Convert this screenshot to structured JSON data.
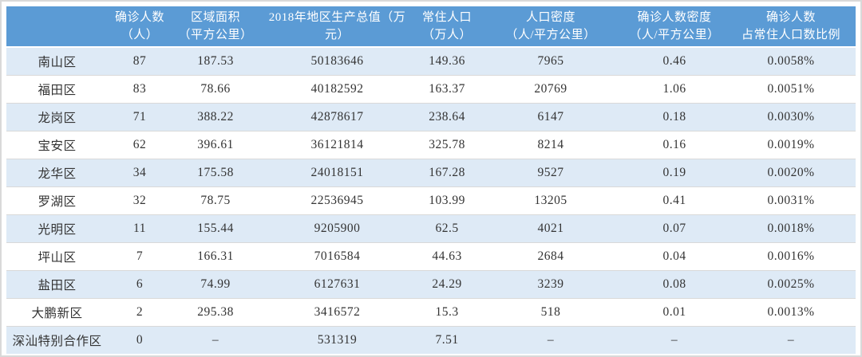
{
  "colors": {
    "header_bg": "#5B9BD5",
    "header_text": "#FFFFFF",
    "row_alt_bg": "#DEEAF6",
    "row_bg": "#FFFFFF",
    "body_text": "#333333",
    "row_border": "#D9D9D9",
    "outer_border": "#D9D9D9"
  },
  "table": {
    "columns": [
      {
        "id": "district",
        "line1": "",
        "line2": ""
      },
      {
        "id": "confirmed",
        "line1": "确诊人数",
        "line2": "（人）"
      },
      {
        "id": "area",
        "line1": "区域面积",
        "line2": "（平方公里）"
      },
      {
        "id": "gdp",
        "line1": "2018年地区生产总值（万",
        "line2": "元）"
      },
      {
        "id": "population",
        "line1": "常住人口",
        "line2": "（万人）"
      },
      {
        "id": "pop-density",
        "line1": "人口密度",
        "line2": "（人/平方公里）"
      },
      {
        "id": "case-density",
        "line1": "确诊人数密度",
        "line2": "（人/平方公里）"
      },
      {
        "id": "case-ratio",
        "line1": "确诊人数",
        "line2": "占常住人口数比例"
      }
    ],
    "rows": [
      [
        "南山区",
        "87",
        "187.53",
        "50183646",
        "149.36",
        "7965",
        "0.46",
        "0.0058%"
      ],
      [
        "福田区",
        "83",
        "78.66",
        "40182592",
        "163.37",
        "20769",
        "1.06",
        "0.0051%"
      ],
      [
        "龙岗区",
        "71",
        "388.22",
        "42878617",
        "238.64",
        "6147",
        "0.18",
        "0.0030%"
      ],
      [
        "宝安区",
        "62",
        "396.61",
        "36121814",
        "325.78",
        "8214",
        "0.16",
        "0.0019%"
      ],
      [
        "龙华区",
        "34",
        "175.58",
        "24018151",
        "167.28",
        "9527",
        "0.19",
        "0.0020%"
      ],
      [
        "罗湖区",
        "32",
        "78.75",
        "22536945",
        "103.99",
        "13205",
        "0.41",
        "0.0031%"
      ],
      [
        "光明区",
        "11",
        "155.44",
        "9205900",
        "62.5",
        "4021",
        "0.07",
        "0.0018%"
      ],
      [
        "坪山区",
        "7",
        "166.31",
        "7016584",
        "44.63",
        "2684",
        "0.04",
        "0.0016%"
      ],
      [
        "盐田区",
        "6",
        "74.99",
        "6127631",
        "24.29",
        "3239",
        "0.08",
        "0.0025%"
      ],
      [
        "大鹏新区",
        "2",
        "295.38",
        "3416572",
        "15.3",
        "518",
        "0.01",
        "0.0013%"
      ],
      [
        "深汕特别合作区",
        "0",
        "–",
        "531319",
        "7.51",
        "–",
        "–",
        "–"
      ]
    ]
  },
  "chart_data": {
    "type": "table",
    "title": "",
    "columns": [
      "区名",
      "确诊人数（人）",
      "区域面积（平方公里）",
      "2018年地区生产总值（万元）",
      "常住人口（万人）",
      "人口密度（人/平方公里）",
      "确诊人数密度（人/平方公里）",
      "确诊人数占常住人口数比例"
    ],
    "rows": [
      [
        "南山区",
        87,
        187.53,
        50183646,
        149.36,
        7965,
        0.46,
        "0.0058%"
      ],
      [
        "福田区",
        83,
        78.66,
        40182592,
        163.37,
        20769,
        1.06,
        "0.0051%"
      ],
      [
        "龙岗区",
        71,
        388.22,
        42878617,
        238.64,
        6147,
        0.18,
        "0.0030%"
      ],
      [
        "宝安区",
        62,
        396.61,
        36121814,
        325.78,
        8214,
        0.16,
        "0.0019%"
      ],
      [
        "龙华区",
        34,
        175.58,
        24018151,
        167.28,
        9527,
        0.19,
        "0.0020%"
      ],
      [
        "罗湖区",
        32,
        78.75,
        22536945,
        103.99,
        13205,
        0.41,
        "0.0031%"
      ],
      [
        "光明区",
        11,
        155.44,
        9205900,
        62.5,
        4021,
        0.07,
        "0.0018%"
      ],
      [
        "坪山区",
        7,
        166.31,
        7016584,
        44.63,
        2684,
        0.04,
        "0.0016%"
      ],
      [
        "盐田区",
        6,
        74.99,
        6127631,
        24.29,
        3239,
        0.08,
        "0.0025%"
      ],
      [
        "大鹏新区",
        2,
        295.38,
        3416572,
        15.3,
        518,
        0.01,
        "0.0013%"
      ],
      [
        "深汕特别合作区",
        0,
        null,
        531319,
        7.51,
        null,
        null,
        null
      ]
    ],
    "layout": {
      "grid": "horizontal-row-separators-only",
      "zebra_striping": true,
      "header_position": "top"
    }
  }
}
